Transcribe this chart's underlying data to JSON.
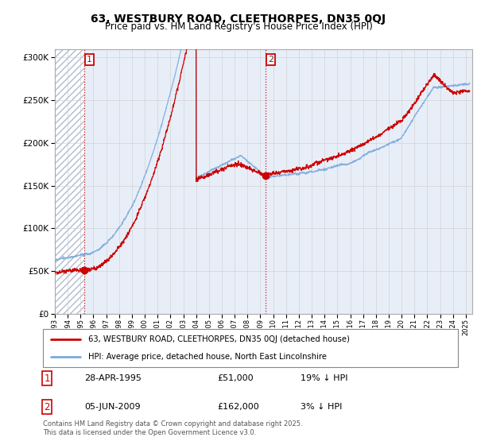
{
  "title_line1": "63, WESTBURY ROAD, CLEETHORPES, DN35 0QJ",
  "title_line2": "Price paid vs. HM Land Registry's House Price Index (HPI)",
  "background_color": "#e8eef8",
  "hatch_color": "#b0bcd0",
  "grid_color": "#cccccc",
  "line1_color": "#cc0000",
  "line2_color": "#7aaadd",
  "annotation1_date": "28-APR-1995",
  "annotation1_price": "£51,000",
  "annotation1_note": "19% ↓ HPI",
  "annotation2_date": "05-JUN-2009",
  "annotation2_price": "£162,000",
  "annotation2_note": "3% ↓ HPI",
  "legend_label1": "63, WESTBURY ROAD, CLEETHORPES, DN35 0QJ (detached house)",
  "legend_label2": "HPI: Average price, detached house, North East Lincolnshire",
  "footer": "Contains HM Land Registry data © Crown copyright and database right 2025.\nThis data is licensed under the Open Government Licence v3.0.",
  "ylim": [
    0,
    310000
  ],
  "yticks": [
    0,
    50000,
    100000,
    150000,
    200000,
    250000,
    300000
  ],
  "ytick_labels": [
    "£0",
    "£50K",
    "£100K",
    "£150K",
    "£200K",
    "£250K",
    "£300K"
  ],
  "xmin": 1993.0,
  "xmax": 2025.5,
  "sale1_x": 1995.32,
  "sale1_y": 51000,
  "sale2_x": 2009.43,
  "sale2_y": 162000
}
